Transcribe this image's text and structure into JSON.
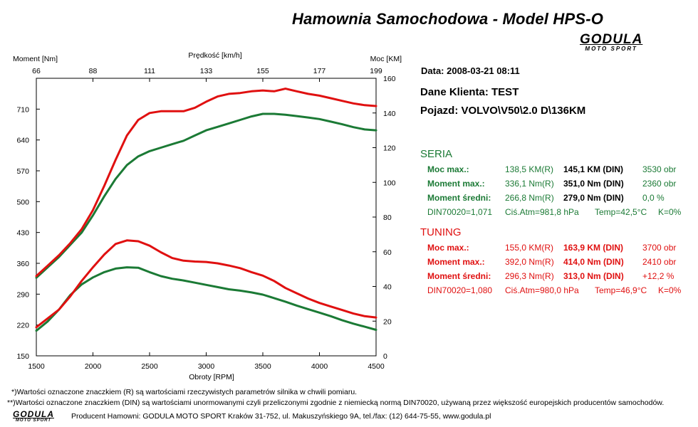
{
  "header": {
    "title": "Hamownia Samochodowa   -   Model HPS-O",
    "logo": {
      "word": "GODULA",
      "sub": "MOTO SPORT"
    }
  },
  "info": {
    "date": "Data: 2008-03-21  08:11",
    "client": "Dane Klienta: TEST",
    "vehicle": "Pojazd: VOLVO\\V50\\2.0 D\\136KM"
  },
  "seria": {
    "title": "SERIA",
    "color": "#1b7a35",
    "rows": [
      {
        "label": "Moc max.:",
        "r": "138,5 KM(R)",
        "din": "145,1 KM (DIN)",
        "extra": "3530 obr"
      },
      {
        "label": "Moment max.:",
        "r": "336,1 Nm(R)",
        "din": "351,0 Nm (DIN)",
        "extra": "2360 obr"
      },
      {
        "label": "Moment średni:",
        "r": "266,8 Nm(R)",
        "din": "279,0 Nm (DIN)",
        "extra": "0,0 %"
      }
    ],
    "footer": {
      "din": "DIN70020=1,071",
      "atm": "Ciś.Atm=981,8 hPa",
      "temp": "Temp=42,5°C",
      "k": "K=0%"
    }
  },
  "tuning": {
    "title": "TUNING",
    "color": "#e01010",
    "rows": [
      {
        "label": "Moc max.:",
        "r": "155,0 KM(R)",
        "din": "163,9 KM (DIN)",
        "extra": "3700 obr"
      },
      {
        "label": "Moment max.:",
        "r": "392,0 Nm(R)",
        "din": "414,0 Nm (DIN)",
        "extra": "2410 obr"
      },
      {
        "label": "Moment średni:",
        "r": "296,3 Nm(R)",
        "din": "313,0 Nm (DIN)",
        "extra": "+12,2 %"
      }
    ],
    "footer": {
      "din": "DIN70020=1,080",
      "atm": "Ciś.Atm=980,0 hPa",
      "temp": "Temp=46,9°C",
      "k": "K=0%"
    }
  },
  "footnotes": {
    "note1": "*)Wartości oznaczone znaczkiem (R) są wartościami rzeczywistych parametrów silnika w chwili pomiaru.",
    "note2": "**)Wartości oznaczone znaczkiem (DIN) są wartościami unormowanymi czyli przeliczonymi zgodnie z niemiecką normą DIN70020, używaną przez większość europejskich producentów samochodów.",
    "producer": "Producent Hamowni: GODULA MOTO SPORT Kraków 31-752, ul. Makuszyńskiego 9A, tel./fax: (12) 644-75-55, www.godula.pl"
  },
  "chart_data": {
    "type": "line",
    "xlabel": "Obroty [RPM]",
    "top_xlabel": "Prędkość [km/h]",
    "ylabel_left": "Moment [Nm]",
    "ylabel_right": "Moc [KM]",
    "xlim": [
      1500,
      4500
    ],
    "ylim_left": [
      150,
      780
    ],
    "ylim_right": [
      0,
      160
    ],
    "x_ticks": [
      "1500",
      "2000",
      "2500",
      "3000",
      "3500",
      "4000",
      "4500"
    ],
    "y_ticks_left": [
      "150",
      "220",
      "290",
      "360",
      "430",
      "500",
      "570",
      "640",
      "710"
    ],
    "y_ticks_right": [
      "0",
      "20",
      "40",
      "60",
      "80",
      "100",
      "120",
      "140",
      "160"
    ],
    "top_ticks": [
      "66",
      "88",
      "111",
      "133",
      "155",
      "177",
      "199"
    ],
    "grid": false,
    "series": [
      {
        "name": "SERIA",
        "axis": "right",
        "color": "#1b7a35",
        "x": [
          1500,
          1600,
          1700,
          1800,
          1900,
          2000,
          2100,
          2200,
          2300,
          2400,
          2500,
          2600,
          2700,
          2800,
          2900,
          3000,
          3100,
          3200,
          3300,
          3400,
          3500,
          3600,
          3700,
          3800,
          3900,
          4000,
          4100,
          4200,
          4300,
          4400,
          4500
        ],
        "y": [
          45,
          51,
          57,
          64,
          71,
          81,
          92,
          102,
          110,
          115,
          118,
          120,
          122,
          124,
          127,
          130,
          132,
          134,
          136,
          138,
          139.5,
          139.5,
          139,
          138.2,
          137.4,
          136.5,
          135,
          133.5,
          131.8,
          130.5,
          130
        ]
      },
      {
        "name": "TUNING",
        "axis": "right",
        "color": "#e01010",
        "x": [
          1500,
          1600,
          1700,
          1800,
          1900,
          2000,
          2100,
          2200,
          2300,
          2400,
          2500,
          2600,
          2700,
          2800,
          2900,
          3000,
          3100,
          3200,
          3300,
          3400,
          3500,
          3600,
          3700,
          3800,
          3900,
          4000,
          4100,
          4200,
          4300,
          4400,
          4500
        ],
        "y": [
          46,
          52,
          58,
          65,
          73,
          84,
          98,
          113,
          127,
          136,
          140,
          141,
          141,
          141,
          143,
          146.5,
          149.5,
          151,
          151.5,
          152.5,
          153,
          152.5,
          154,
          152.5,
          151,
          150,
          148.5,
          147,
          145.5,
          144.5,
          144
        ]
      },
      {
        "name": "SERIA",
        "axis": "left",
        "color": "#1b7a35",
        "x": [
          1500,
          1600,
          1700,
          1800,
          1900,
          2000,
          2100,
          2200,
          2300,
          2400,
          2500,
          2600,
          2700,
          2800,
          2900,
          3000,
          3100,
          3200,
          3300,
          3400,
          3500,
          3600,
          3700,
          3800,
          3900,
          4000,
          4100,
          4200,
          4300,
          4400,
          4500
        ],
        "y": [
          207,
          228,
          255,
          288,
          312,
          328,
          340,
          348,
          351,
          350,
          340,
          331,
          325,
          321,
          316,
          311,
          306,
          301,
          298,
          294,
          289,
          281,
          273,
          264,
          256,
          248,
          240,
          231,
          223,
          216,
          209
        ]
      },
      {
        "name": "TUNING",
        "axis": "left",
        "color": "#e01010",
        "x": [
          1500,
          1600,
          1700,
          1800,
          1900,
          2000,
          2100,
          2200,
          2300,
          2400,
          2500,
          2600,
          2700,
          2800,
          2900,
          3000,
          3100,
          3200,
          3300,
          3400,
          3500,
          3600,
          3700,
          3800,
          3900,
          4000,
          4100,
          4200,
          4300,
          4400,
          4500
        ],
        "y": [
          215,
          235,
          255,
          285,
          320,
          351,
          380,
          404,
          412,
          410,
          400,
          385,
          372,
          366,
          364,
          363,
          360,
          355,
          349,
          340,
          332,
          320,
          304,
          292,
          280,
          270,
          262,
          254,
          246,
          240,
          237
        ]
      }
    ]
  }
}
